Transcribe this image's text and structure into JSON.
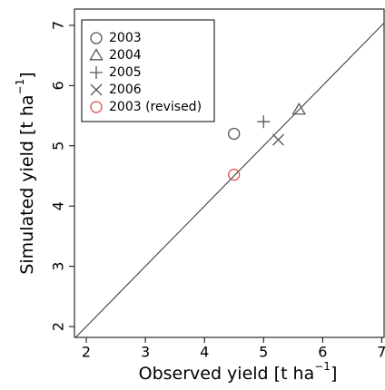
{
  "chart_data": {
    "type": "scatter",
    "xlabel": {
      "text": "Observed yield [t ha",
      "sup": "−1",
      "end": "]"
    },
    "ylabel": {
      "text": "Simulated yield [t ha",
      "sup": "−1",
      "end": "]"
    },
    "xlim": [
      1.8,
      7.04
    ],
    "ylim": [
      1.82,
      7.27
    ],
    "xticks": [
      2,
      3,
      4,
      5,
      6,
      7
    ],
    "yticks": [
      2,
      3,
      4,
      5,
      6,
      7
    ],
    "identity_line": true,
    "legend": "top-left",
    "series": [
      {
        "name": "2003",
        "marker": "circle",
        "color": "#555555",
        "x": [
          4.5
        ],
        "values": [
          5.2
        ]
      },
      {
        "name": "2004",
        "marker": "triangle",
        "color": "#555555",
        "x": [
          5.6
        ],
        "values": [
          5.6
        ]
      },
      {
        "name": "2005",
        "marker": "plus",
        "color": "#555555",
        "x": [
          5.0
        ],
        "values": [
          5.4
        ]
      },
      {
        "name": "2006",
        "marker": "cross",
        "color": "#555555",
        "x": [
          5.25
        ],
        "values": [
          5.1
        ]
      },
      {
        "name": "2003 (revised)",
        "marker": "circle",
        "color": "#d9534f",
        "x": [
          4.5
        ],
        "values": [
          4.52
        ]
      }
    ]
  }
}
